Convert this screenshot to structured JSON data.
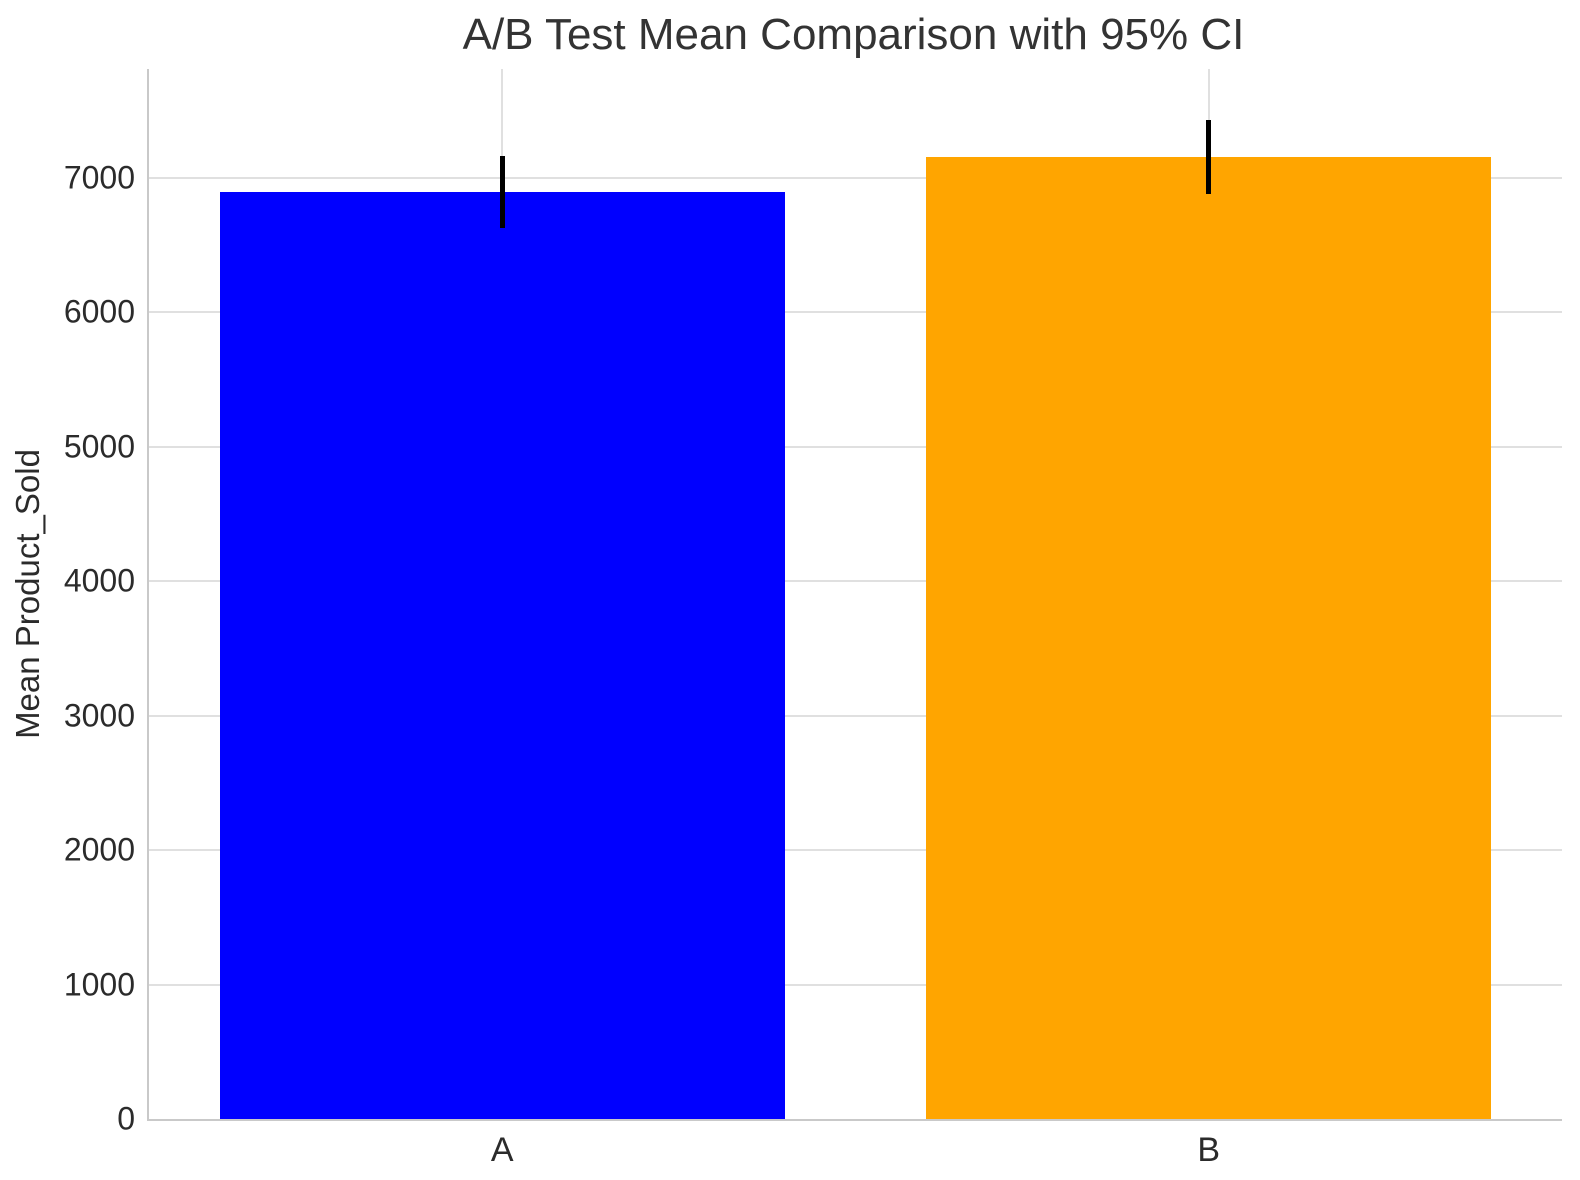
{
  "title": "A/B Test Mean Comparison with 95% CI",
  "axes": {
    "ylabel": "Mean Product_Sold",
    "xlabel": ""
  },
  "chart_data": {
    "type": "bar",
    "title": "A/B Test Mean Comparison with 95% CI",
    "xlabel": "",
    "ylabel": "Mean Product_Sold",
    "categories": [
      "A",
      "B"
    ],
    "values": [
      6895,
      7155
    ],
    "error_bars": {
      "kind": "95% CI",
      "lower": [
        6630,
        6880
      ],
      "upper": [
        7160,
        7430
      ]
    },
    "bar_colors": [
      "#0000ff",
      "#ffa500"
    ],
    "errorbar_color": "#000000",
    "yticks": [
      0,
      1000,
      2000,
      3000,
      4000,
      5000,
      6000,
      7000
    ],
    "ylim": [
      0,
      7810
    ],
    "bar_width_fraction": 0.8,
    "grid": "on",
    "grid_color": "#e0e0e0",
    "axis_color": "#c9c9c9",
    "text_color": "#2b2b2b",
    "background_color": "#ffffff",
    "legend": "none"
  }
}
